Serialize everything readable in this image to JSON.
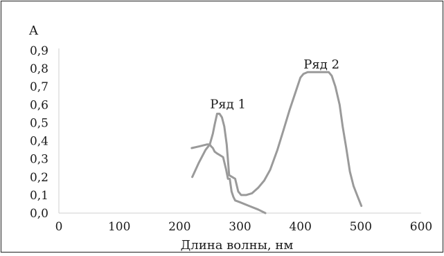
{
  "chart_data": {
    "type": "line",
    "title": "",
    "xlabel": "Длина волны, нм",
    "ylabel": "A",
    "xlim": [
      0,
      600
    ],
    "ylim": [
      0,
      0.9
    ],
    "x_ticks": [
      "0",
      "100",
      "200",
      "300",
      "400",
      "500",
      "600"
    ],
    "y_ticks": [
      "0,0",
      "0,1",
      "0,2",
      "0,3",
      "0,4",
      "0,5",
      "0,6",
      "0,7",
      "0,8",
      "0,9"
    ],
    "grid": false,
    "line_color": "#9a9a9a",
    "series": [
      {
        "name": "Ряд 1",
        "x": [
          220,
          233,
          245,
          250,
          252,
          255,
          258,
          262,
          267,
          272,
          277,
          280,
          283,
          286,
          289,
          292,
          300,
          315,
          330,
          342
        ],
        "y": [
          0.36,
          0.37,
          0.38,
          0.38,
          0.37,
          0.36,
          0.34,
          0.33,
          0.32,
          0.31,
          0.24,
          0.19,
          0.19,
          0.12,
          0.09,
          0.07,
          0.06,
          0.04,
          0.02,
          0.0
        ]
      },
      {
        "name": "Ряд 2",
        "x": [
          221,
          232,
          243,
          250,
          255,
          258,
          262,
          266,
          270,
          274,
          278,
          282,
          287,
          292,
          297,
          302,
          310,
          320,
          330,
          340,
          350,
          362,
          372,
          382,
          392,
          400,
          405,
          412,
          420,
          430,
          440,
          447,
          452,
          458,
          465,
          470,
          476,
          482,
          488,
          495,
          501
        ],
        "y": [
          0.2,
          0.28,
          0.35,
          0.38,
          0.44,
          0.49,
          0.55,
          0.55,
          0.53,
          0.48,
          0.38,
          0.21,
          0.2,
          0.19,
          0.12,
          0.1,
          0.1,
          0.11,
          0.14,
          0.18,
          0.24,
          0.35,
          0.46,
          0.57,
          0.67,
          0.75,
          0.77,
          0.78,
          0.78,
          0.78,
          0.78,
          0.78,
          0.76,
          0.7,
          0.6,
          0.48,
          0.36,
          0.23,
          0.15,
          0.09,
          0.04
        ]
      }
    ],
    "annotations": [
      {
        "text": "Ряд 1",
        "x": 280,
        "y": 0.58
      },
      {
        "text": "Ряд 2",
        "x": 435,
        "y": 0.8
      }
    ]
  }
}
